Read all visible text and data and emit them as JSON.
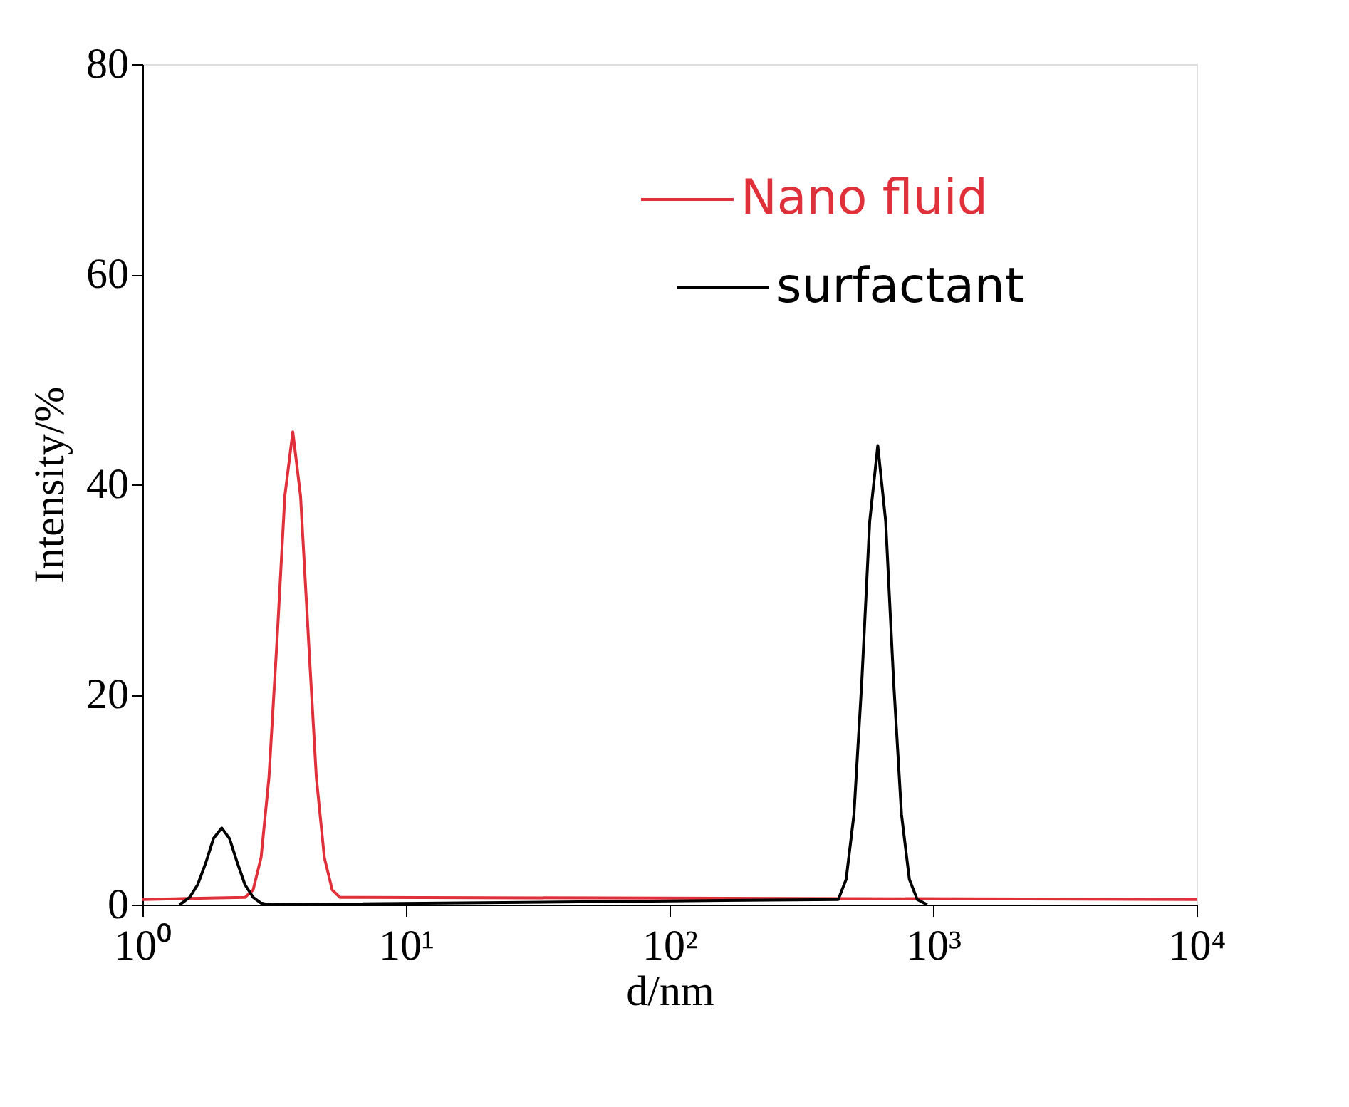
{
  "chart_data": {
    "type": "line",
    "xlabel": "d/nm",
    "ylabel": "Intensity/%",
    "log": "x",
    "xlim": [
      1,
      10000
    ],
    "ylim": [
      0,
      80
    ],
    "xticks": [
      {
        "value": 1,
        "label": "10⁰"
      },
      {
        "value": 10,
        "label": "10¹"
      },
      {
        "value": 100,
        "label": "10²"
      },
      {
        "value": 1000,
        "label": "10³"
      },
      {
        "value": 10000,
        "label": "10⁴"
      }
    ],
    "yticks": [
      0,
      20,
      40,
      60,
      80
    ],
    "grid": false,
    "legend": "top right",
    "marker": "none",
    "line_style": "solid",
    "series": [
      {
        "name": "Nano fluid",
        "color": "#e0303a",
        "x": [
          1,
          2.45,
          2.63,
          2.82,
          3.02,
          3.24,
          3.47,
          3.72,
          3.98,
          4.27,
          4.57,
          4.9,
          5.25,
          5.62,
          10000
        ],
        "values": [
          0.5,
          0.7,
          1.4,
          4.5,
          12.1,
          25.1,
          38.9,
          45,
          38.9,
          25.1,
          12.1,
          4.5,
          1.4,
          0.7,
          0.5
        ]
      },
      {
        "name": "surfactant",
        "color": "#000000",
        "x": [
          1.38,
          1.41,
          1.51,
          1.62,
          1.74,
          1.86,
          2.0,
          2.14,
          2.29,
          2.45,
          2.63,
          2.82,
          3.02,
          437,
          468,
          501,
          537,
          575,
          617,
          661,
          708,
          759,
          813,
          871,
          950
        ],
        "values": [
          0,
          0.15,
          0.7,
          1.9,
          4.0,
          6.3,
          7.3,
          6.3,
          4.0,
          1.9,
          0.7,
          0.15,
          0,
          0.5,
          2.4,
          8.6,
          21.4,
          36.5,
          43.7,
          36.5,
          21.4,
          8.6,
          2.4,
          0.5,
          0
        ]
      }
    ]
  }
}
